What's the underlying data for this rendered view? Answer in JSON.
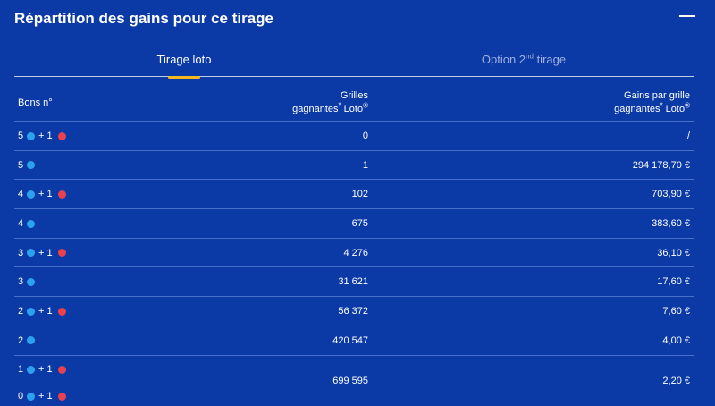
{
  "header": {
    "title": "Répartition des gains pour ce tirage"
  },
  "tabs": {
    "loto": "Tirage loto",
    "option": "Option 2",
    "option_sup": "nd",
    "option_suffix": " tirage"
  },
  "table": {
    "col_bons": "Bons n°",
    "col_grilles_line1": "Grilles",
    "col_grilles_line2": "gagnantes",
    "col_grilles_line3": " Loto",
    "col_gains_line1": "Gains par grille",
    "col_gains_line2": "gagnantes",
    "col_gains_line3": " Loto",
    "sup_star": "*",
    "sup_reg": "®",
    "rows": [
      {
        "n": "5",
        "bonus": "+ 1",
        "grilles": "0",
        "gains": "/"
      },
      {
        "n": "5",
        "bonus": "",
        "grilles": "1",
        "gains": "294 178,70 €"
      },
      {
        "n": "4",
        "bonus": "+ 1",
        "grilles": "102",
        "gains": "703,90 €"
      },
      {
        "n": "4",
        "bonus": "",
        "grilles": "675",
        "gains": "383,60 €"
      },
      {
        "n": "3",
        "bonus": "+ 1",
        "grilles": "4 276",
        "gains": "36,10 €"
      },
      {
        "n": "3",
        "bonus": "",
        "grilles": "31 621",
        "gains": "17,60 €"
      },
      {
        "n": "2",
        "bonus": "+ 1",
        "grilles": "56 372",
        "gains": "7,60 €"
      },
      {
        "n": "2",
        "bonus": "",
        "grilles": "420 547",
        "gains": "4,00 €"
      }
    ],
    "last_row": {
      "n1": "1",
      "bonus1": "+ 1",
      "n2": "0",
      "bonus2": "+ 1",
      "grilles": "699 595",
      "gains": "2,20 €"
    }
  },
  "colors": {
    "background": "#0b3aa6",
    "ball_blue": "#2aa2ef",
    "ball_red": "#e8414f",
    "tab_active_underline": "#f5b71e"
  }
}
